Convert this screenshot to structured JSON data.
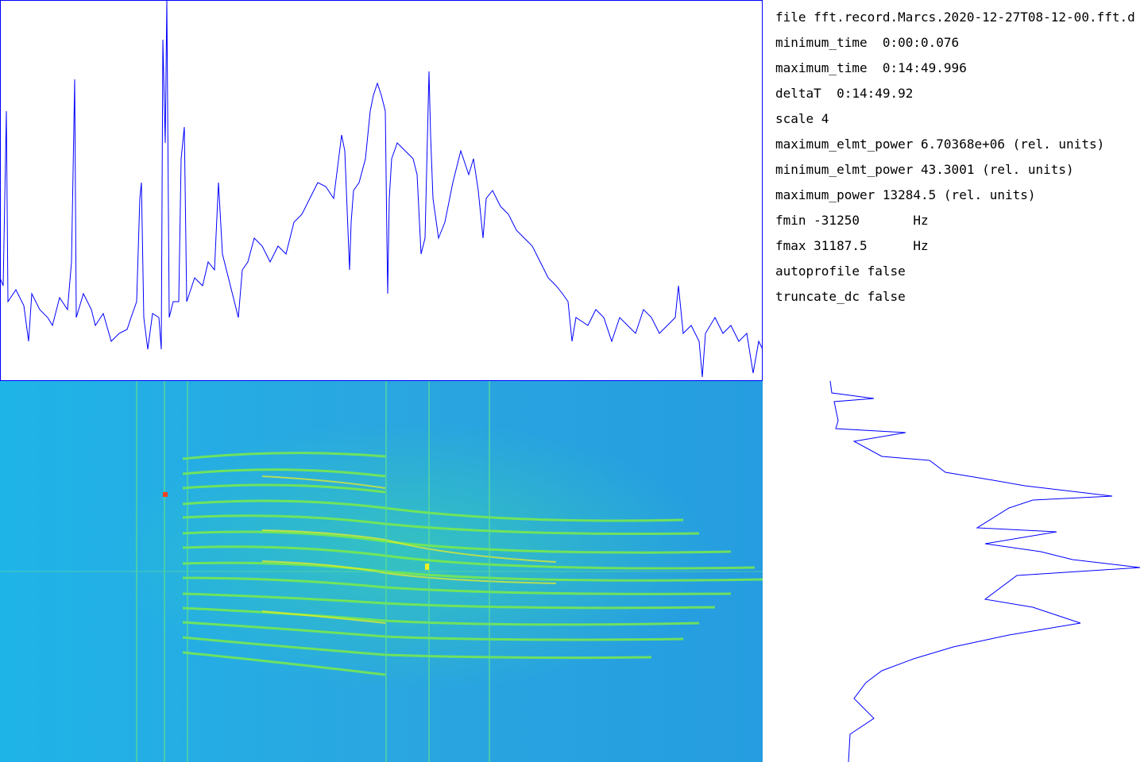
{
  "info_lines": [
    "file fft.record.Marcs.2020-12-27T08-12-00.fft.d",
    "minimum_time  0:00:0.076",
    "maximum_time  0:14:49.996",
    "deltaT  0:14:49.92",
    "scale 4",
    "maximum_elmt_power 6.70368e+06 (rel. units)",
    "minimum_elmt_power 43.3001 (rel. units)",
    "maximum_power 13284.5 (rel. units)",
    "fmin -31250       Hz",
    "fmax 31187.5      Hz",
    "autoprofile false",
    "truncate_dc false"
  ]
}
